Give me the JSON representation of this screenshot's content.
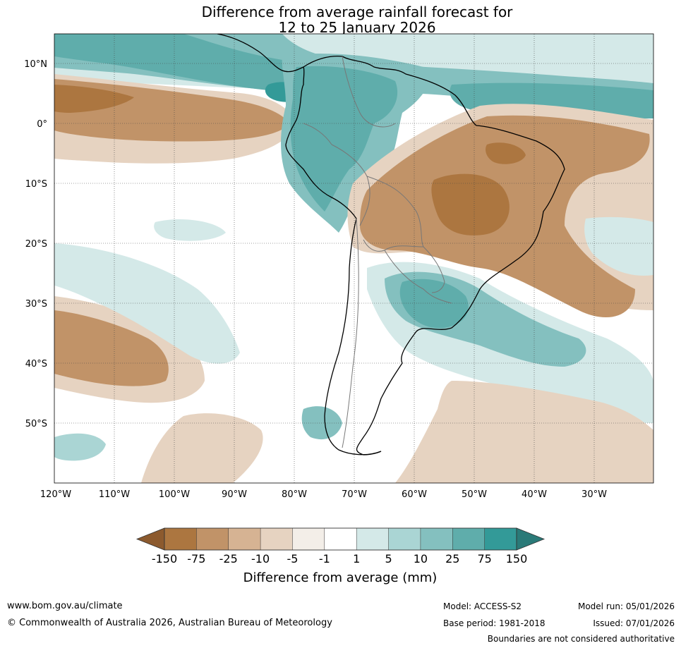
{
  "title": {
    "line1": "Difference from average rainfall forecast for",
    "line2": "12 to 25 January 2026"
  },
  "map": {
    "lat_ticks": [
      "10°N",
      "0°",
      "10°S",
      "20°S",
      "30°S",
      "40°S",
      "50°S"
    ],
    "lon_ticks": [
      "120°W",
      "110°W",
      "100°W",
      "90°W",
      "80°W",
      "70°W",
      "60°W",
      "50°W",
      "40°W",
      "30°W"
    ],
    "lon_range": [
      -120,
      -20
    ],
    "lat_range": [
      -60,
      15
    ]
  },
  "colorbar": {
    "labels": [
      "-150",
      "-75",
      "-25",
      "-10",
      "-5",
      "-1",
      "1",
      "5",
      "10",
      "25",
      "75",
      "150"
    ],
    "colors": [
      "#8c5a2e",
      "#ac7640",
      "#c19368",
      "#d6b393",
      "#e6d3c1",
      "#f3eee8",
      "#ffffff",
      "#d4e9e8",
      "#aad5d4",
      "#84c0bf",
      "#5fadab",
      "#339a98",
      "#2a7a78"
    ],
    "axis_label": "Difference from average (mm)"
  },
  "footer": {
    "website": "www.bom.gov.au/climate",
    "copyright": "© Commonwealth of Australia 2026, Australian Bureau of Meteorology",
    "model": "Model: ACCESS-S2",
    "base_period": "Base period: 1981-2018",
    "model_run": "Model run: 05/01/2026",
    "issued": "Issued: 07/01/2026",
    "disclaimer": "Boundaries are not considered authoritative"
  }
}
